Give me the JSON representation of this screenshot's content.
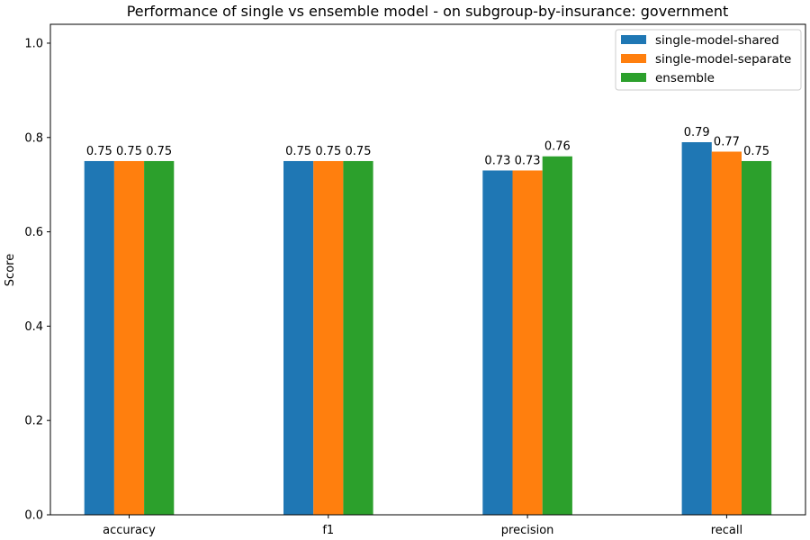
{
  "chart_data": {
    "type": "bar",
    "title": "Performance of single vs ensemble model - on subgroup-by-insurance: government",
    "xlabel": "",
    "ylabel": "Score",
    "ylim": [
      0,
      1.04
    ],
    "yticks": [
      "0.0",
      "0.2",
      "0.4",
      "0.6",
      "0.8",
      "1.0"
    ],
    "categories": [
      "accuracy",
      "f1",
      "precision",
      "recall"
    ],
    "series": [
      {
        "name": "single-model-shared",
        "color": "#1f77b4",
        "values": [
          0.75,
          0.75,
          0.73,
          0.79
        ],
        "labels": [
          "0.75",
          "0.75",
          "0.73",
          "0.79"
        ]
      },
      {
        "name": "single-model-separate",
        "color": "#ff7f0e",
        "values": [
          0.75,
          0.75,
          0.73,
          0.77
        ],
        "labels": [
          "0.75",
          "0.75",
          "0.73",
          "0.77"
        ]
      },
      {
        "name": "ensemble",
        "color": "#2ca02c",
        "values": [
          0.75,
          0.75,
          0.76,
          0.75
        ],
        "labels": [
          "0.75",
          "0.75",
          "0.76",
          "0.75"
        ]
      }
    ],
    "grid": false,
    "legend_position": "top-right"
  }
}
